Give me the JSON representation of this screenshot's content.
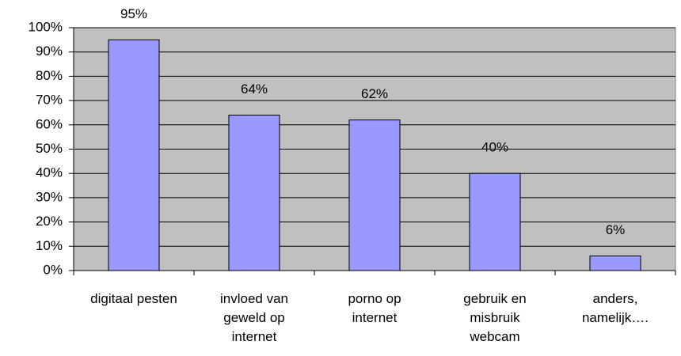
{
  "chart_data": {
    "type": "bar",
    "categories": [
      "digitaal pesten",
      "invloed van geweld op internet",
      "porno op internet",
      "gebruik en misbruik webcam",
      "anders, namelijk…."
    ],
    "values": [
      95,
      64,
      62,
      40,
      6
    ],
    "value_labels": [
      "95%",
      "64%",
      "62%",
      "40%",
      "6%"
    ],
    "color": "#9999ff",
    "ylim": [
      0,
      100
    ],
    "yticks": [
      {
        "value": 0,
        "label": "0%"
      },
      {
        "value": 10,
        "label": "10%"
      },
      {
        "value": 20,
        "label": "20%"
      },
      {
        "value": 30,
        "label": "30%"
      },
      {
        "value": 40,
        "label": "40%"
      },
      {
        "value": 50,
        "label": "50%"
      },
      {
        "value": 60,
        "label": "60%"
      },
      {
        "value": 70,
        "label": "70%"
      },
      {
        "value": 80,
        "label": "80%"
      },
      {
        "value": 90,
        "label": "90%"
      },
      {
        "value": 100,
        "label": "100%"
      }
    ],
    "grid": true
  }
}
